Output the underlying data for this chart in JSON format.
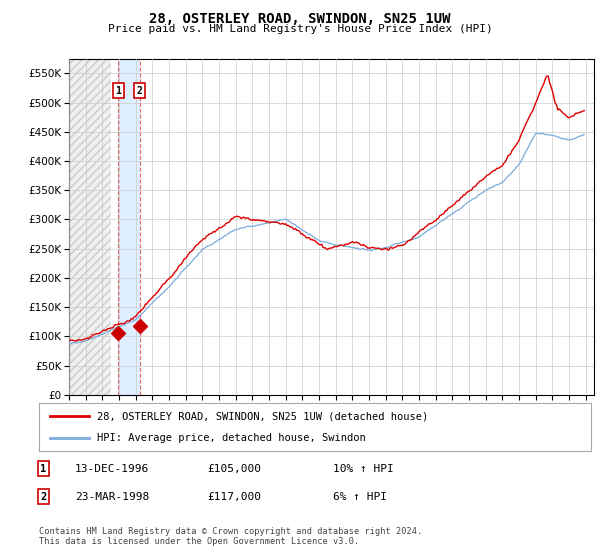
{
  "title": "28, OSTERLEY ROAD, SWINDON, SN25 1UW",
  "subtitle": "Price paid vs. HM Land Registry's House Price Index (HPI)",
  "ylim": [
    0,
    575000
  ],
  "yticks": [
    0,
    50000,
    100000,
    150000,
    200000,
    250000,
    300000,
    350000,
    400000,
    450000,
    500000,
    550000
  ],
  "background_color": "#ffffff",
  "grid_color": "#cccccc",
  "legend_entry1": "28, OSTERLEY ROAD, SWINDON, SN25 1UW (detached house)",
  "legend_entry2": "HPI: Average price, detached house, Swindon",
  "sale1_date": 1996.96,
  "sale1_price": 105000,
  "sale2_date": 1998.23,
  "sale2_price": 117000,
  "transactions": [
    {
      "label": "1",
      "date": "13-DEC-1996",
      "price": "£105,000",
      "hpi": "10% ↑ HPI"
    },
    {
      "label": "2",
      "date": "23-MAR-1998",
      "price": "£117,000",
      "hpi": "6% ↑ HPI"
    }
  ],
  "footer": "Contains HM Land Registry data © Crown copyright and database right 2024.\nThis data is licensed under the Open Government Licence v3.0.",
  "line1_color": "#dd0000",
  "line2_color": "#7aabdb",
  "marker_color": "#cc0000",
  "vline_color": "#dd4444",
  "box1_color": "#cc0000",
  "box2_color": "#cc0000",
  "shade_color": "#ddeeff"
}
